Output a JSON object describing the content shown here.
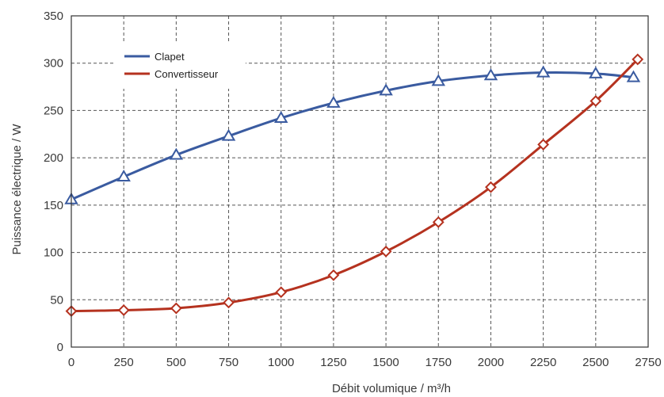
{
  "chart_data": {
    "type": "line",
    "title": "",
    "xlabel": "Débit volumique / m³/h",
    "ylabel": "Puissance électrique / W",
    "xlim": [
      0,
      2750
    ],
    "ylim": [
      0,
      350
    ],
    "xticks": [
      0,
      250,
      500,
      750,
      1000,
      1250,
      1500,
      1750,
      2000,
      2250,
      2500,
      2750
    ],
    "yticks": [
      0,
      50,
      100,
      150,
      200,
      250,
      300,
      350
    ],
    "grid": true,
    "legend_position": "top-left",
    "series": [
      {
        "name": "Clapet",
        "color": "#3a5ba0",
        "marker": "triangle",
        "x": [
          0,
          250,
          500,
          750,
          1000,
          1250,
          1500,
          1750,
          2000,
          2250,
          2500,
          2680
        ],
        "y": [
          156,
          180,
          203,
          223,
          242,
          258,
          271,
          281,
          287,
          290,
          289,
          285
        ]
      },
      {
        "name": "Convertisseur",
        "color": "#b5321f",
        "marker": "diamond",
        "x": [
          0,
          250,
          500,
          750,
          1000,
          1250,
          1500,
          1750,
          2000,
          2250,
          2500,
          2700
        ],
        "y": [
          38,
          39,
          41,
          47,
          58,
          76,
          101,
          132,
          169,
          214,
          260,
          304
        ]
      }
    ]
  }
}
